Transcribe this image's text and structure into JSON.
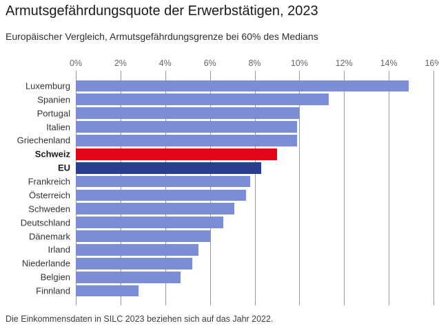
{
  "header": {
    "title": "Armutsgefährdungsquote der Erwerbstätigen, 2023",
    "subtitle": "Europäischer Vergleich, Armutsgefährdungsgrenze bei 60% des Medians"
  },
  "footer": {
    "note": "Die Einkommensdaten in SILC 2023 beziehen sich auf das Jahr 2022."
  },
  "colors": {
    "bar_default": "#7c8dd8",
    "bar_switzerland": "#e30617",
    "bar_eu": "#2b3d8f",
    "gridline": "#979797",
    "axis_label": "#666666",
    "category_label": "#333333"
  },
  "chart_data": {
    "type": "bar",
    "orientation": "horizontal",
    "title": "Armutsgefährdungsquote der Erwerbstätigen, 2023",
    "subtitle": "Europäischer Vergleich, Armutsgefährdungsgrenze bei 60% des Medians",
    "unit": "%",
    "categories": [
      "Luxemburg",
      "Spanien",
      "Portugal",
      "Italien",
      "Griechenland",
      "Schweiz",
      "EU",
      "Frankreich",
      "Österreich",
      "Schweden",
      "Deutschland",
      "Dänemark",
      "Irland",
      "Niederlande",
      "Belgien",
      "Finnland"
    ],
    "values": [
      14.9,
      11.3,
      10.0,
      9.9,
      9.9,
      9.0,
      8.3,
      7.8,
      7.6,
      7.1,
      6.6,
      6.0,
      5.5,
      5.2,
      4.7,
      2.8
    ],
    "highlighted": {
      "Schweiz": "#e30617",
      "EU": "#2b3d8f"
    },
    "bold_categories": [
      "Schweiz",
      "EU"
    ],
    "xlim": [
      0,
      16
    ],
    "x_tick_labels": [
      "0%",
      "2%",
      "4%",
      "6%",
      "8%",
      "10%",
      "12%",
      "14%",
      "16%"
    ],
    "xlabel": "",
    "ylabel": "",
    "grid": true,
    "legend": false,
    "note": "Die Einkommensdaten in SILC 2023 beziehen sich auf das Jahr 2022."
  }
}
